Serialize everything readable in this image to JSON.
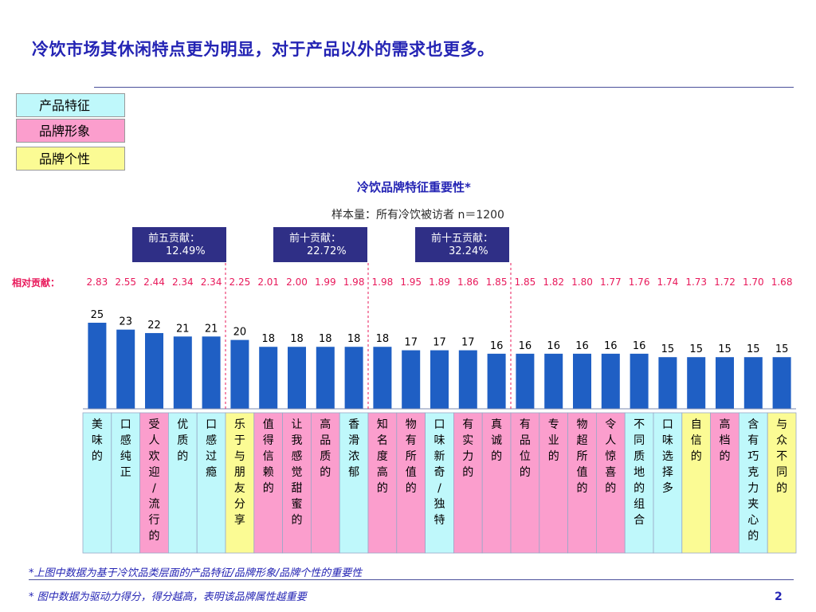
{
  "title": "冷饮市场其休闲特点更为明显，对于产品以外的需求也更多。",
  "legend": [
    {
      "label": "产品特征",
      "color": "#bff8fb"
    },
    {
      "label": "品牌形象",
      "color": "#fb9ecd"
    },
    {
      "label": "品牌个性",
      "color": "#fbfb94"
    }
  ],
  "badges": [
    {
      "label": "前五贡献：",
      "value": "12.49%"
    },
    {
      "label": "前十贡献：",
      "value": "22.72%"
    },
    {
      "label": "前十五贡献：",
      "value": "32.24%"
    }
  ],
  "relative_label": "相对贡献：",
  "footnote1": "*上图中数据为基于冷饮品类层面的产品特征/品牌形象/品牌个性的重要性",
  "footnote2": "* 图中数据为驱动力得分，得分越高，表明该品牌属性越重要",
  "page_number": "2",
  "chart_data": {
    "type": "bar",
    "title": "冷饮品牌特征重要性*",
    "subtitle": "样本量：所有冷饮被访者 n＝1200",
    "bar_color": "#1f5fc4",
    "categories": [
      "美味的",
      "口感纯正",
      "受人欢迎/流行的",
      "优质的",
      "口感过瘾",
      "乐于与朋友分享",
      "值得信赖的",
      "让我感觉甜蜜的",
      "高品质的",
      "香滑浓郁",
      "知名度高的",
      "物有所值的",
      "口味新奇/独特",
      "有实力的",
      "真诚的",
      "有品位的",
      "专业的",
      "物超所值的",
      "令人惊喜的",
      "不同质地的组合",
      "口味选择多",
      "自信的",
      "高档的",
      "含有巧克力夹心的",
      "与众不同的"
    ],
    "values": [
      25,
      23,
      22,
      21,
      21,
      20,
      18,
      18,
      18,
      18,
      18,
      17,
      17,
      17,
      16,
      16,
      16,
      16,
      16,
      16,
      15,
      15,
      15,
      15,
      15
    ],
    "relative_contribution": [
      "2.83",
      "2.55",
      "2.44",
      "2.34",
      "2.34",
      "2.25",
      "2.01",
      "2.00",
      "1.99",
      "1.98",
      "1.98",
      "1.95",
      "1.89",
      "1.86",
      "1.85",
      "1.85",
      "1.82",
      "1.80",
      "1.77",
      "1.76",
      "1.74",
      "1.73",
      "1.72",
      "1.70",
      "1.68"
    ],
    "category_group": [
      "产品特征",
      "产品特征",
      "品牌形象",
      "产品特征",
      "产品特征",
      "品牌个性",
      "品牌形象",
      "品牌形象",
      "品牌形象",
      "产品特征",
      "品牌形象",
      "品牌形象",
      "产品特征",
      "品牌形象",
      "品牌形象",
      "品牌形象",
      "品牌形象",
      "品牌形象",
      "品牌形象",
      "产品特征",
      "产品特征",
      "品牌个性",
      "品牌形象",
      "产品特征",
      "品牌个性"
    ],
    "group_colors": {
      "产品特征": "#bff8fb",
      "品牌形象": "#fb9ecd",
      "品牌个性": "#fbfb94"
    },
    "dividers_after": [
      5,
      10,
      15
    ],
    "ylim": [
      0,
      25
    ]
  }
}
